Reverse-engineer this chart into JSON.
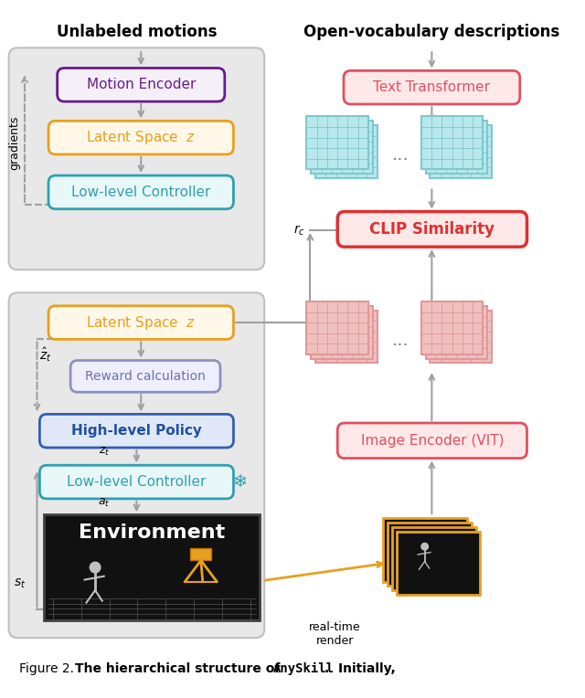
{
  "bg_color": "#e8e8e8",
  "title_left": "Unlabeled motions",
  "title_right": "Open-vocabulary descriptions",
  "grid_teal_color": "#80c8d0",
  "grid_teal_fill": "#b8e8ec",
  "grid_pink_color": "#e09898",
  "grid_pink_fill": "#f0c0c0",
  "arrow_color": "#a0a0a0",
  "env_bg": "#111111",
  "gradients_label": "gradients",
  "snowflake": "❄",
  "dots": "...",
  "realtime_label": "real-time\nrender"
}
